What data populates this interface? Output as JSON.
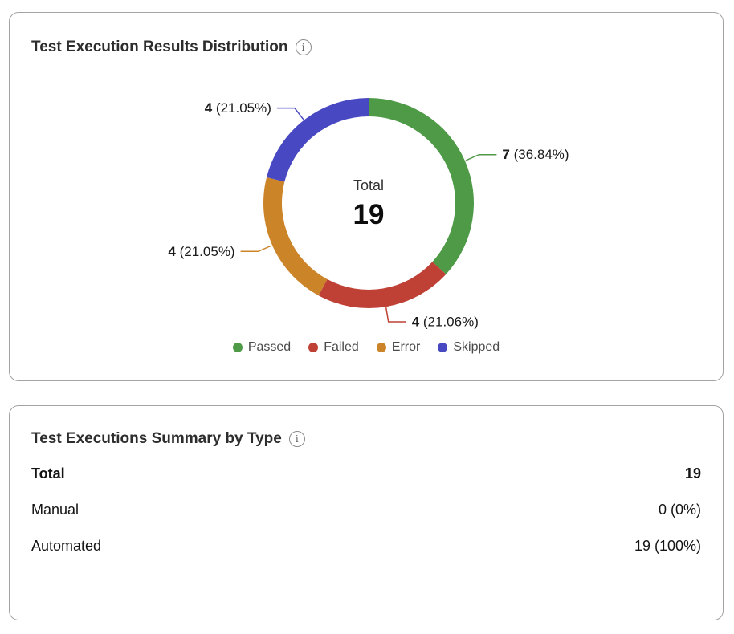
{
  "distribution_card": {
    "title": "Test Execution Results Distribution"
  },
  "summary_card": {
    "title": "Test Executions Summary by Type",
    "rows": [
      {
        "label": "Total",
        "value": "19"
      },
      {
        "label": "Manual",
        "value": "0 (0%)"
      },
      {
        "label": "Automated",
        "value": "19 (100%)"
      }
    ]
  },
  "chart_data": {
    "type": "pie",
    "variant": "donut",
    "title": "Test Execution Results Distribution",
    "total": 19,
    "center": {
      "label": "Total",
      "value": "19"
    },
    "legend_position": "bottom",
    "start_angle_deg": 0,
    "direction": "clockwise",
    "slices": [
      {
        "label": "Passed",
        "value": 7,
        "pct_label": "36.84%",
        "color": "#4e9a47"
      },
      {
        "label": "Failed",
        "value": 4,
        "pct_label": "21.06%",
        "color": "#bf4136"
      },
      {
        "label": "Error",
        "value": 4,
        "pct_label": "21.05%",
        "color": "#cc8429"
      },
      {
        "label": "Skipped",
        "value": 4,
        "pct_label": "21.05%",
        "color": "#4848c2"
      }
    ]
  }
}
